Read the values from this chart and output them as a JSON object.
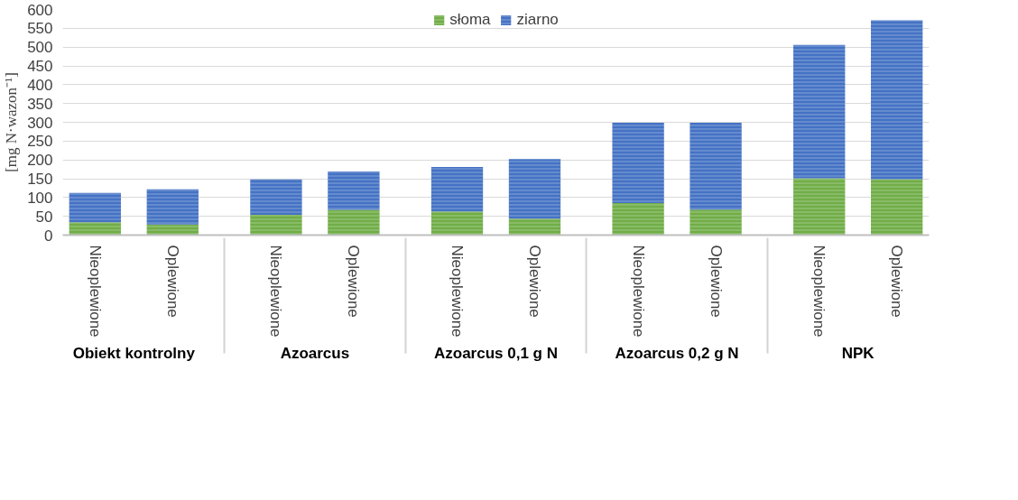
{
  "chart_data": {
    "type": "bar",
    "stacked": true,
    "ylabel": "[mg N·wazon⁻¹]",
    "categories": [
      "Nieoplewione",
      "Oplewione",
      "Nieoplewione",
      "Oplewione",
      "Nieoplewione",
      "Oplewione",
      "Nieoplewione",
      "Oplewione",
      "Nieoplewione",
      "Oplewione"
    ],
    "annotations": [
      "Obiekt kontrolny",
      "Azoarcus",
      "Azoarcus 0,1 g N",
      "Azoarcus 0,2 g N",
      "NPK"
    ],
    "series": [
      {
        "name": "słoma",
        "color": "#70ad47",
        "values": [
          34,
          28,
          54,
          67,
          63,
          44,
          85,
          68,
          151,
          149
        ]
      },
      {
        "name": "ziarno",
        "color": "#4472c4",
        "values": [
          78,
          94,
          94,
          102,
          118,
          158,
          214,
          231,
          355,
          422
        ]
      }
    ],
    "ylim": [
      0,
      600
    ],
    "yticks": [
      0,
      50,
      100,
      150,
      200,
      250,
      300,
      350,
      400,
      450,
      500,
      550,
      600
    ],
    "grid": "y",
    "legend": "top"
  }
}
